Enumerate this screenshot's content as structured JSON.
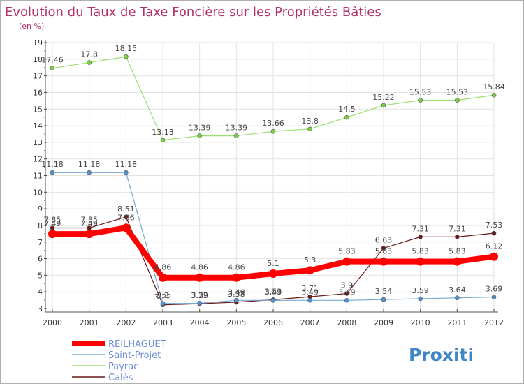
{
  "chart_data": {
    "type": "line",
    "title": "Evolution du Taux de Taxe Foncière sur les Propriétés Bâties",
    "subtitle": "(en %)",
    "brand": "Proxiti",
    "xlabel": "",
    "ylabel": "",
    "ylim": [
      3,
      19
    ],
    "yticks": [
      3,
      4,
      5,
      6,
      7,
      8,
      9,
      10,
      11,
      12,
      13,
      14,
      15,
      16,
      17,
      18,
      19
    ],
    "categories": [
      "2000",
      "2001",
      "2002",
      "2003",
      "2004",
      "2005",
      "2006",
      "2007",
      "2008",
      "2009",
      "2010",
      "2011",
      "2012"
    ],
    "grid": true,
    "legend": "bottom-left",
    "series": [
      {
        "name": "Calès",
        "color": "#6b1a1a",
        "marker": "#6b1a1a",
        "width": 1.2,
        "values": [
          7.85,
          7.85,
          8.51,
          3.22,
          3.29,
          3.38,
          3.53,
          3.71,
          3.9,
          6.63,
          7.31,
          7.31,
          7.53
        ],
        "labels": [
          "7.85",
          "7.85",
          "8.51",
          "3.22",
          "3.29",
          "3.38",
          "3.53",
          "3.71",
          "3.9",
          "6.63",
          "7.31",
          "7.31",
          "7.53"
        ]
      },
      {
        "name": "Payrac",
        "color": "#99e070",
        "marker": "#7bcf42",
        "width": 1.2,
        "values": [
          17.46,
          17.8,
          18.15,
          13.13,
          13.39,
          13.39,
          13.66,
          13.8,
          14.5,
          15.22,
          15.53,
          15.53,
          15.84
        ],
        "labels": [
          "17.46",
          "17.8",
          "18.15",
          "13.13",
          "13.39",
          "13.39",
          "13.66",
          "13.8",
          "14.5",
          "15.22",
          "15.53",
          "15.53",
          "15.84"
        ]
      },
      {
        "name": "Saint-Projet",
        "color": "#77a9d6",
        "marker": "#4f93d1",
        "width": 1.2,
        "values": [
          11.18,
          11.18,
          11.18,
          3.3,
          3.32,
          3.49,
          3.49,
          3.49,
          3.49,
          3.54,
          3.59,
          3.64,
          3.69
        ],
        "labels": [
          "11.18",
          "11.18",
          "11.18",
          "3.3",
          "3.32",
          "3.49",
          "3.49",
          "3.49",
          "3.49",
          "3.54",
          "3.59",
          "3.64",
          "3.69"
        ]
      },
      {
        "name": "REILHAGUET",
        "color": "#ff0000",
        "marker": "#ff0000",
        "width": 8,
        "values": [
          7.49,
          7.49,
          7.86,
          4.86,
          4.86,
          4.86,
          5.1,
          5.3,
          5.83,
          5.83,
          5.83,
          5.83,
          6.12
        ],
        "labels": [
          "7.49",
          "7.49",
          "7.86",
          "4.86",
          "4.86",
          "4.86",
          "5.1",
          "5.3",
          "5.83",
          "5.83",
          "5.83",
          "5.83",
          "6.12"
        ]
      }
    ],
    "legend_order": [
      "REILHAGUET",
      "Saint-Projet",
      "Payrac",
      "Calès"
    ]
  }
}
